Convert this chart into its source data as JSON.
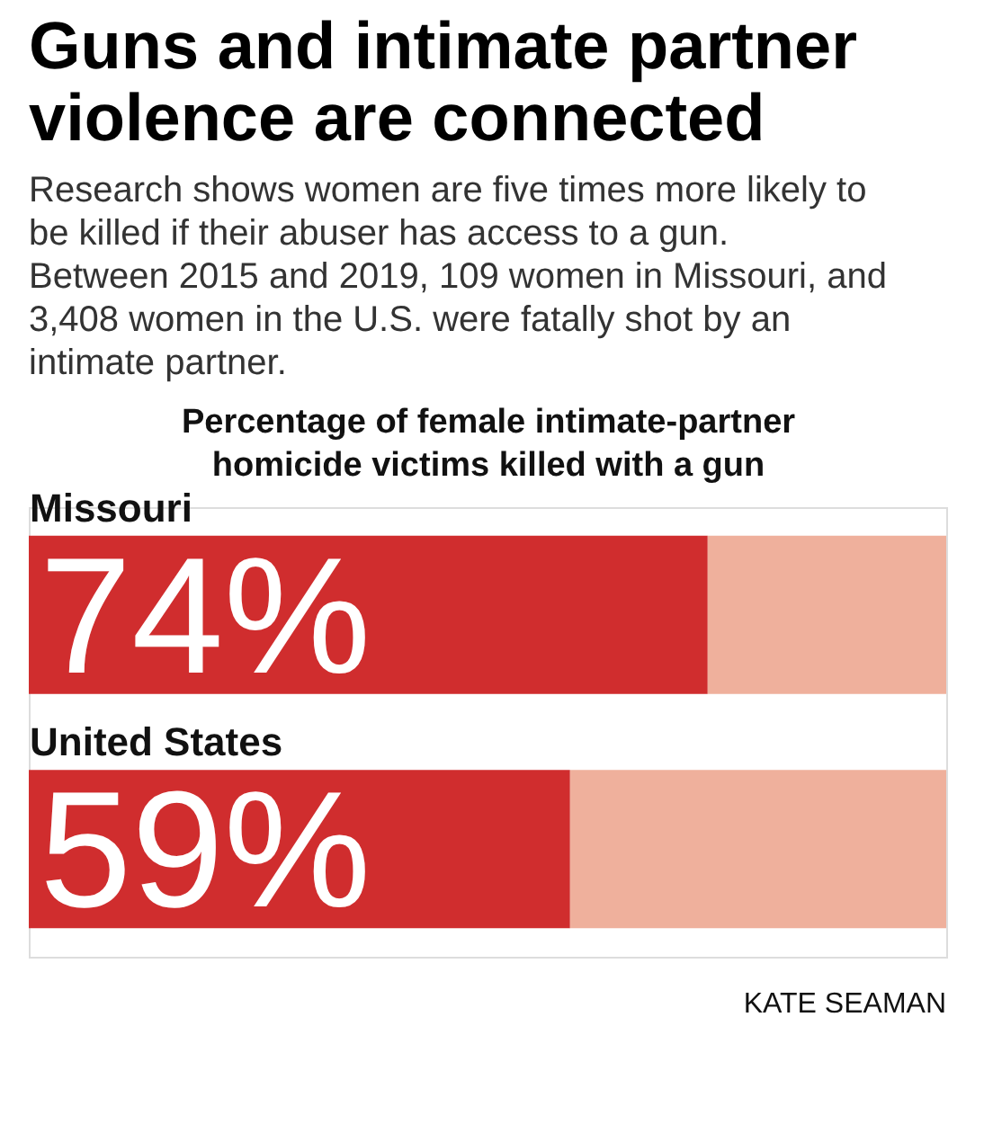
{
  "chart_data": {
    "type": "bar",
    "orientation": "horizontal",
    "stacked": true,
    "title": "Guns and intimate partner violence are connected",
    "subtitle": "Research shows women are five times more likely to be killed if their abuser has access to a gun. Between 2015 and 2019, 109 women in Missouri, and 3,408 women in the U.S. were fatally shot by an intimate partner.",
    "xlabel": "Percentage of female intimate-partner homicide victims killed with a gun",
    "categories": [
      "Missouri",
      "United States"
    ],
    "series": [
      {
        "color": "#d02d2e",
        "values": [
          74,
          59
        ],
        "value_labels": [
          "74%",
          "59%"
        ]
      },
      {
        "color": "#efb09c",
        "values": [
          26,
          41
        ]
      }
    ],
    "xlim": [
      0,
      100
    ],
    "tick_labels": "y",
    "grid": false,
    "annotations": [
      "KATE SEAMAN"
    ]
  }
}
